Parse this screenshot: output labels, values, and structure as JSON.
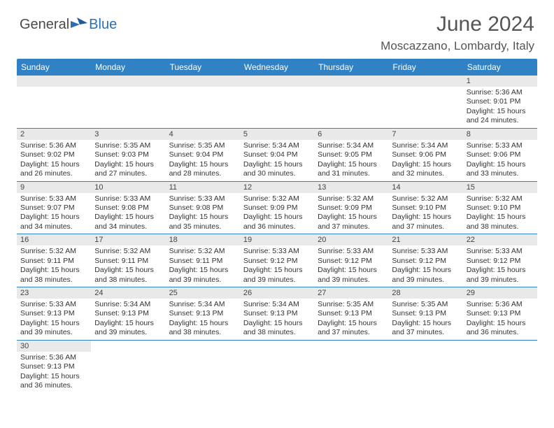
{
  "logo": {
    "general": "General",
    "blue": "Blue"
  },
  "title": "June 2024",
  "location": "Moscazzano, Lombardy, Italy",
  "colors": {
    "header_bg": "#3082c4",
    "header_text": "#ffffff",
    "daynum_bg": "#e9e9e9",
    "cell_border": "#3082c4",
    "title_color": "#555555",
    "logo_general": "#4a4a4a",
    "logo_blue": "#2a6fb5"
  },
  "day_headers": [
    "Sunday",
    "Monday",
    "Tuesday",
    "Wednesday",
    "Thursday",
    "Friday",
    "Saturday"
  ],
  "weeks": [
    [
      null,
      null,
      null,
      null,
      null,
      null,
      {
        "n": "1",
        "sunrise": "5:36 AM",
        "sunset": "9:01 PM",
        "dl1": "15 hours",
        "dl2": "and 24 minutes."
      }
    ],
    [
      {
        "n": "2",
        "sunrise": "5:36 AM",
        "sunset": "9:02 PM",
        "dl1": "15 hours",
        "dl2": "and 26 minutes."
      },
      {
        "n": "3",
        "sunrise": "5:35 AM",
        "sunset": "9:03 PM",
        "dl1": "15 hours",
        "dl2": "and 27 minutes."
      },
      {
        "n": "4",
        "sunrise": "5:35 AM",
        "sunset": "9:04 PM",
        "dl1": "15 hours",
        "dl2": "and 28 minutes."
      },
      {
        "n": "5",
        "sunrise": "5:34 AM",
        "sunset": "9:04 PM",
        "dl1": "15 hours",
        "dl2": "and 30 minutes."
      },
      {
        "n": "6",
        "sunrise": "5:34 AM",
        "sunset": "9:05 PM",
        "dl1": "15 hours",
        "dl2": "and 31 minutes."
      },
      {
        "n": "7",
        "sunrise": "5:34 AM",
        "sunset": "9:06 PM",
        "dl1": "15 hours",
        "dl2": "and 32 minutes."
      },
      {
        "n": "8",
        "sunrise": "5:33 AM",
        "sunset": "9:06 PM",
        "dl1": "15 hours",
        "dl2": "and 33 minutes."
      }
    ],
    [
      {
        "n": "9",
        "sunrise": "5:33 AM",
        "sunset": "9:07 PM",
        "dl1": "15 hours",
        "dl2": "and 34 minutes."
      },
      {
        "n": "10",
        "sunrise": "5:33 AM",
        "sunset": "9:08 PM",
        "dl1": "15 hours",
        "dl2": "and 34 minutes."
      },
      {
        "n": "11",
        "sunrise": "5:33 AM",
        "sunset": "9:08 PM",
        "dl1": "15 hours",
        "dl2": "and 35 minutes."
      },
      {
        "n": "12",
        "sunrise": "5:32 AM",
        "sunset": "9:09 PM",
        "dl1": "15 hours",
        "dl2": "and 36 minutes."
      },
      {
        "n": "13",
        "sunrise": "5:32 AM",
        "sunset": "9:09 PM",
        "dl1": "15 hours",
        "dl2": "and 37 minutes."
      },
      {
        "n": "14",
        "sunrise": "5:32 AM",
        "sunset": "9:10 PM",
        "dl1": "15 hours",
        "dl2": "and 37 minutes."
      },
      {
        "n": "15",
        "sunrise": "5:32 AM",
        "sunset": "9:10 PM",
        "dl1": "15 hours",
        "dl2": "and 38 minutes."
      }
    ],
    [
      {
        "n": "16",
        "sunrise": "5:32 AM",
        "sunset": "9:11 PM",
        "dl1": "15 hours",
        "dl2": "and 38 minutes."
      },
      {
        "n": "17",
        "sunrise": "5:32 AM",
        "sunset": "9:11 PM",
        "dl1": "15 hours",
        "dl2": "and 38 minutes."
      },
      {
        "n": "18",
        "sunrise": "5:32 AM",
        "sunset": "9:11 PM",
        "dl1": "15 hours",
        "dl2": "and 39 minutes."
      },
      {
        "n": "19",
        "sunrise": "5:33 AM",
        "sunset": "9:12 PM",
        "dl1": "15 hours",
        "dl2": "and 39 minutes."
      },
      {
        "n": "20",
        "sunrise": "5:33 AM",
        "sunset": "9:12 PM",
        "dl1": "15 hours",
        "dl2": "and 39 minutes."
      },
      {
        "n": "21",
        "sunrise": "5:33 AM",
        "sunset": "9:12 PM",
        "dl1": "15 hours",
        "dl2": "and 39 minutes."
      },
      {
        "n": "22",
        "sunrise": "5:33 AM",
        "sunset": "9:12 PM",
        "dl1": "15 hours",
        "dl2": "and 39 minutes."
      }
    ],
    [
      {
        "n": "23",
        "sunrise": "5:33 AM",
        "sunset": "9:13 PM",
        "dl1": "15 hours",
        "dl2": "and 39 minutes."
      },
      {
        "n": "24",
        "sunrise": "5:34 AM",
        "sunset": "9:13 PM",
        "dl1": "15 hours",
        "dl2": "and 39 minutes."
      },
      {
        "n": "25",
        "sunrise": "5:34 AM",
        "sunset": "9:13 PM",
        "dl1": "15 hours",
        "dl2": "and 38 minutes."
      },
      {
        "n": "26",
        "sunrise": "5:34 AM",
        "sunset": "9:13 PM",
        "dl1": "15 hours",
        "dl2": "and 38 minutes."
      },
      {
        "n": "27",
        "sunrise": "5:35 AM",
        "sunset": "9:13 PM",
        "dl1": "15 hours",
        "dl2": "and 37 minutes."
      },
      {
        "n": "28",
        "sunrise": "5:35 AM",
        "sunset": "9:13 PM",
        "dl1": "15 hours",
        "dl2": "and 37 minutes."
      },
      {
        "n": "29",
        "sunrise": "5:36 AM",
        "sunset": "9:13 PM",
        "dl1": "15 hours",
        "dl2": "and 36 minutes."
      }
    ],
    [
      {
        "n": "30",
        "sunrise": "5:36 AM",
        "sunset": "9:13 PM",
        "dl1": "15 hours",
        "dl2": "and 36 minutes."
      },
      null,
      null,
      null,
      null,
      null,
      null
    ]
  ],
  "labels": {
    "sunrise": "Sunrise:",
    "sunset": "Sunset:",
    "daylight": "Daylight:"
  }
}
